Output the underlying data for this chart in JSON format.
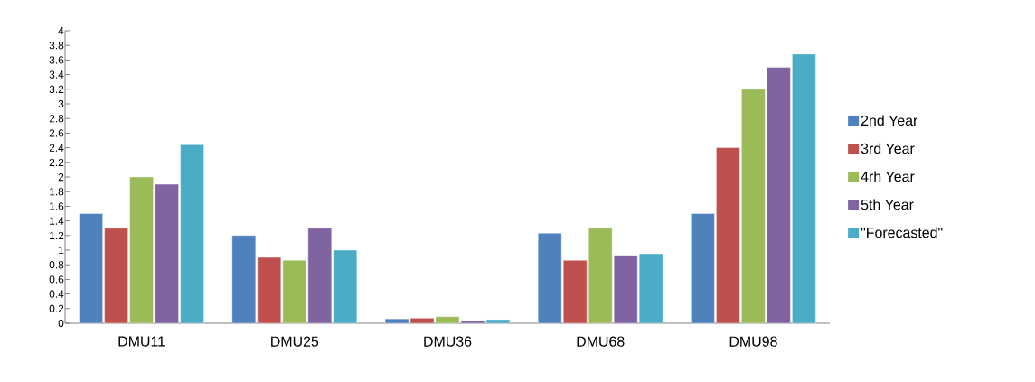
{
  "chart_data": {
    "type": "bar",
    "categories": [
      "DMU11",
      "DMU25",
      "DMU36",
      "DMU68",
      "DMU98"
    ],
    "series": [
      {
        "name": "2nd Year",
        "color": "#4f81bd",
        "values": [
          1.5,
          1.2,
          0.06,
          1.23,
          1.5
        ]
      },
      {
        "name": "3rd Year",
        "color": "#c0504d",
        "values": [
          1.3,
          0.9,
          0.07,
          0.86,
          2.4
        ]
      },
      {
        "name": "4rh Year",
        "color": "#9bbb59",
        "values": [
          2.0,
          0.86,
          0.09,
          1.3,
          3.2
        ]
      },
      {
        "name": "5th Year",
        "color": "#8064a2",
        "values": [
          1.9,
          1.3,
          0.03,
          0.93,
          3.5
        ]
      },
      {
        "name": "\"Forecasted\"",
        "color": "#4bacc6",
        "values": [
          2.44,
          1.0,
          0.05,
          0.95,
          3.68
        ]
      }
    ],
    "ylim": [
      0,
      4
    ],
    "yticks": [
      0,
      0.2,
      0.4,
      0.6,
      0.8,
      1,
      1.2,
      1.4,
      1.6,
      1.8,
      2,
      2.2,
      2.4,
      2.6,
      2.8,
      3,
      3.2,
      3.4,
      3.6,
      3.8,
      4
    ],
    "legend": "right",
    "grid": false
  }
}
